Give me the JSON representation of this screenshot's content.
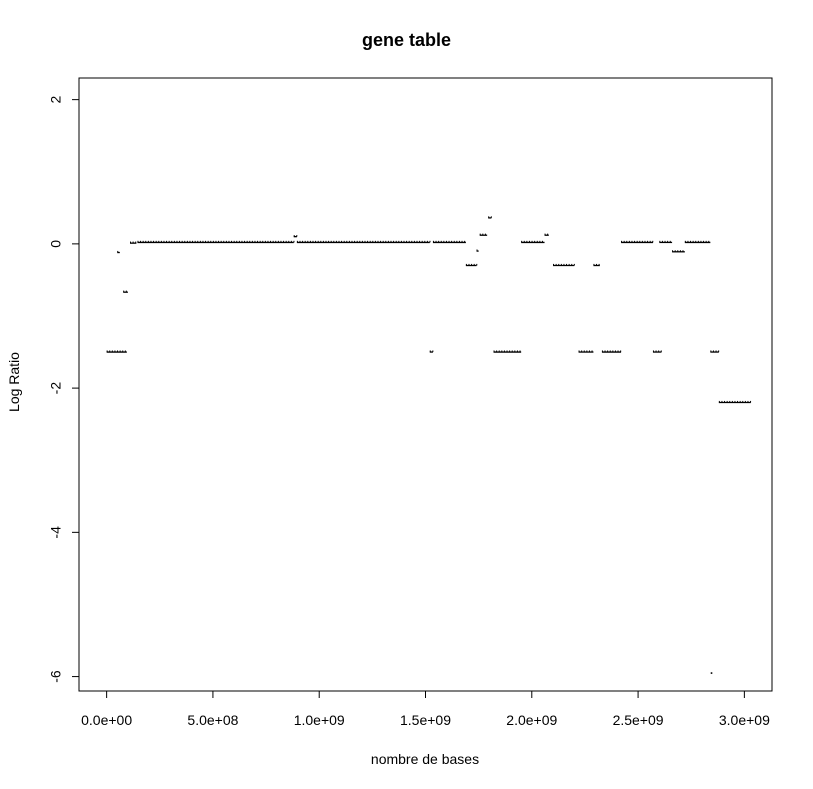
{
  "chart_data": {
    "type": "scatter",
    "title": "gene table",
    "xlabel": "nombre de bases",
    "ylabel": "Log Ratio",
    "xlim": [
      -130000000.0,
      3130000000.0
    ],
    "ylim": [
      -6.2,
      2.3
    ],
    "x_ticks": [
      0,
      500000000.0,
      1000000000.0,
      1500000000.0,
      2000000000.0,
      2500000000.0,
      3000000000.0
    ],
    "x_tick_labels": [
      "0.0e+00",
      "5.0e+08",
      "1.0e+09",
      "1.5e+09",
      "2.0e+09",
      "2.5e+09",
      "3.0e+09"
    ],
    "y_ticks": [
      2,
      0,
      -2,
      -4,
      -6
    ],
    "y_tick_labels": [
      "2",
      "0",
      "-2",
      "-4",
      "-6"
    ],
    "grid": false,
    "point_color": "#000000",
    "segments": [
      {
        "x_start": 0,
        "x_end": 95000000.0,
        "y": -1.5
      },
      {
        "x_start": 50000000.0,
        "x_end": 62000000.0,
        "y": -0.12
      },
      {
        "x_start": 78000000.0,
        "x_end": 100000000.0,
        "y": -0.67
      },
      {
        "x_start": 110000000.0,
        "x_end": 140000000.0,
        "y": 0.01
      },
      {
        "x_start": 145000000.0,
        "x_end": 880000000.0,
        "y": 0.02
      },
      {
        "x_start": 880000000.0,
        "x_end": 895000000.0,
        "y": 0.1
      },
      {
        "x_start": 895000000.0,
        "x_end": 1520000000.0,
        "y": 0.02
      },
      {
        "x_start": 1520000000.0,
        "x_end": 1535000000.0,
        "y": -1.5
      },
      {
        "x_start": 1535000000.0,
        "x_end": 1690000000.0,
        "y": 0.02
      },
      {
        "x_start": 1690000000.0,
        "x_end": 1740000000.0,
        "y": -0.3
      },
      {
        "x_start": 1740000000.0,
        "x_end": 1750000000.0,
        "y": -0.1
      },
      {
        "x_start": 1755000000.0,
        "x_end": 1790000000.0,
        "y": 0.12
      },
      {
        "x_start": 1795000000.0,
        "x_end": 1810000000.0,
        "y": 0.36
      },
      {
        "x_start": 1820000000.0,
        "x_end": 1950000000.0,
        "y": -1.5
      },
      {
        "x_start": 1950000000.0,
        "x_end": 2060000000.0,
        "y": 0.02
      },
      {
        "x_start": 2060000000.0,
        "x_end": 2080000000.0,
        "y": 0.12
      },
      {
        "x_start": 2100000000.0,
        "x_end": 2200000000.0,
        "y": -0.3
      },
      {
        "x_start": 2220000000.0,
        "x_end": 2290000000.0,
        "y": -1.5
      },
      {
        "x_start": 2290000000.0,
        "x_end": 2320000000.0,
        "y": -0.3
      },
      {
        "x_start": 2330000000.0,
        "x_end": 2420000000.0,
        "y": -1.5
      },
      {
        "x_start": 2420000000.0,
        "x_end": 2570000000.0,
        "y": 0.02
      },
      {
        "x_start": 2570000000.0,
        "x_end": 2610000000.0,
        "y": -1.5
      },
      {
        "x_start": 2600000000.0,
        "x_end": 2660000000.0,
        "y": 0.02
      },
      {
        "x_start": 2660000000.0,
        "x_end": 2720000000.0,
        "y": -0.11
      },
      {
        "x_start": 2720000000.0,
        "x_end": 2840000000.0,
        "y": 0.02
      },
      {
        "x_start": 2840000000.0,
        "x_end": 2880000000.0,
        "y": -1.5
      },
      {
        "x_start": 2880000000.0,
        "x_end": 3030000000.0,
        "y": -2.2
      }
    ],
    "outliers": [
      {
        "x": 2845000000.0,
        "y": -5.95
      }
    ]
  }
}
